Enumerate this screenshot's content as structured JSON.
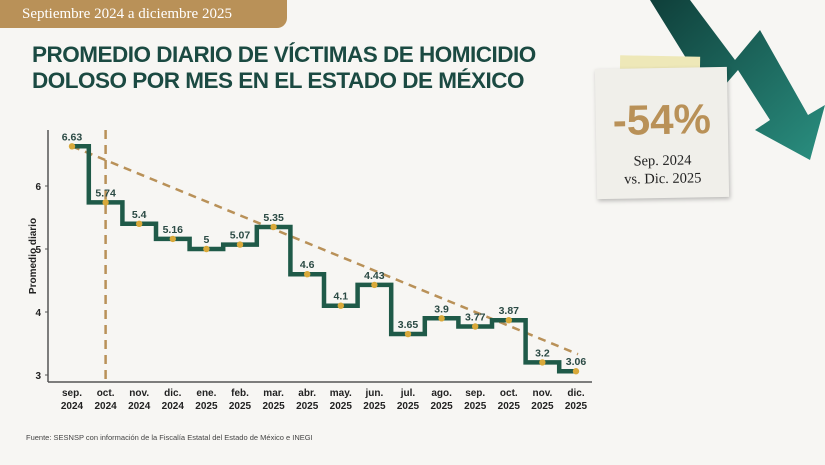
{
  "badge": "Septiembre 2024 a diciembre 2025",
  "title": {
    "line1": "PROMEDIO DIARIO DE VÍCTIMAS DE HOMICIDIO",
    "line2": "DOLOSO POR MES EN EL ESTADO DE MÉXICO"
  },
  "callout": {
    "percent": "-54%",
    "line1": "Sep. 2024",
    "line2": "vs. Dic. 2025",
    "icon": "down-trend-arrow-icon"
  },
  "source": "Fuente: SESNSP con información de la Fiscalía Estatal del Estado de México e INEGI",
  "colors": {
    "line": "#1f5a48",
    "trend": "#b99158",
    "point": "#d9a93a",
    "accent": "#b99158",
    "title": "#1b4a42"
  },
  "chart_data": {
    "type": "line",
    "step": true,
    "title": "PROMEDIO DIARIO DE VÍCTIMAS DE HOMICIDIO DOLOSO POR MES EN EL ESTADO DE MÉXICO",
    "ylabel": "Promedio diario",
    "xlabel": "",
    "ylim": [
      3,
      6.7
    ],
    "yticks": [
      3,
      4,
      5,
      6
    ],
    "categories": [
      [
        "sep.",
        "2024"
      ],
      [
        "oct.",
        "2024"
      ],
      [
        "nov.",
        "2024"
      ],
      [
        "dic.",
        "2024"
      ],
      [
        "ene.",
        "2025"
      ],
      [
        "feb.",
        "2025"
      ],
      [
        "mar.",
        "2025"
      ],
      [
        "abr.",
        "2025"
      ],
      [
        "may.",
        "2025"
      ],
      [
        "jun.",
        "2025"
      ],
      [
        "jul.",
        "2025"
      ],
      [
        "ago.",
        "2025"
      ],
      [
        "sep.",
        "2025"
      ],
      [
        "oct.",
        "2025"
      ],
      [
        "nov.",
        "2025"
      ],
      [
        "dic.",
        "2025"
      ]
    ],
    "values": [
      6.63,
      5.74,
      5.4,
      5.16,
      5,
      5.07,
      5.35,
      4.6,
      4.1,
      4.43,
      3.65,
      3.9,
      3.77,
      3.87,
      3.2,
      3.06
    ],
    "trendline": "linear dashed",
    "marker_line": {
      "category_index": 1,
      "style": "vertical dashed"
    },
    "grid": false
  }
}
